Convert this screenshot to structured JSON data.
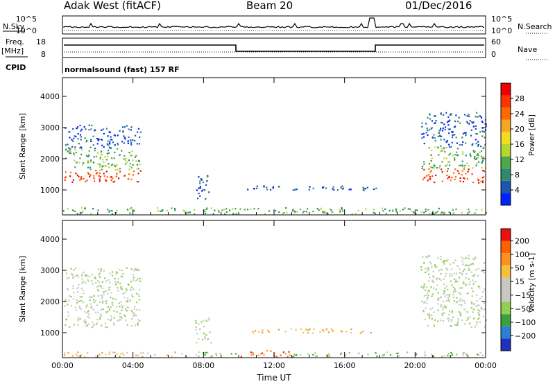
{
  "header": {
    "station": "Adak West (fitACF)",
    "beam": "Beam 20",
    "date": "01/Dec/2016"
  },
  "panels": {
    "nsky_label": "N.Sky",
    "nsky_ticks": [
      "10^5",
      "10^0"
    ],
    "nsearch_label": "N.Search",
    "nsearch_ticks": [
      "10^5",
      "10^0"
    ],
    "freq_label": "Freq.",
    "freq_unit": "[MHz]",
    "freq_ticks": [
      "18",
      "8"
    ],
    "nave_label": "Nave",
    "nave_ticks": [
      "60",
      "0"
    ],
    "cpid_label": "CPID",
    "cpid_text": "normalsound (fast) 157 RF"
  },
  "chart_data": [
    {
      "type": "heatmap",
      "name": "power",
      "ylabel": "Slant Range [km]",
      "xlabel": "",
      "colorbar_label": "Power [dB]",
      "x_ticks": [
        "00:00",
        "04:00",
        "08:00",
        "12:00",
        "16:00",
        "20:00",
        "00:00"
      ],
      "y_ticks": [
        "1000",
        "2000",
        "3000",
        "4000"
      ],
      "ylim": [
        200,
        4600
      ],
      "xlim_hours": [
        0,
        24
      ],
      "colorbar_ticks": [
        "4",
        "8",
        "12",
        "16",
        "20",
        "24",
        "28"
      ],
      "colorbar_colors": [
        "#0022ff",
        "#1e55b0",
        "#2d8a6a",
        "#4ea84a",
        "#b6d630",
        "#f0dc20",
        "#f5a623",
        "#ff6a00",
        "#ff3300",
        "#ee0000"
      ],
      "regions": [
        {
          "t": [
            0.1,
            4.4
          ],
          "r": [
            1250,
            1650
          ],
          "level": 8
        },
        {
          "t": [
            0.1,
            4.4
          ],
          "r": [
            1650,
            2350
          ],
          "level": 3
        },
        {
          "t": [
            0.1,
            4.4
          ],
          "r": [
            2350,
            3100
          ],
          "level": 1
        },
        {
          "t": [
            7.5,
            8.4
          ],
          "r": [
            700,
            1500
          ],
          "level": 1
        },
        {
          "t": [
            10.0,
            17.8
          ],
          "r": [
            1000,
            1150
          ],
          "level": 1
        },
        {
          "t": [
            0.0,
            24.0
          ],
          "r": [
            250,
            450
          ],
          "level": 3
        },
        {
          "t": [
            20.3,
            24.0
          ],
          "r": [
            1250,
            1700
          ],
          "level": 8
        },
        {
          "t": [
            20.3,
            24.0
          ],
          "r": [
            1700,
            2400
          ],
          "level": 3
        },
        {
          "t": [
            20.3,
            24.0
          ],
          "r": [
            2400,
            3500
          ],
          "level": 1
        }
      ]
    },
    {
      "type": "heatmap",
      "name": "velocity",
      "ylabel": "Slant Range [km]",
      "xlabel": "Time UT",
      "colorbar_label": "Velocity [m s-1]",
      "x_ticks": [
        "00:00",
        "04:00",
        "08:00",
        "12:00",
        "16:00",
        "20:00",
        "00:00"
      ],
      "y_ticks": [
        "1000",
        "2000",
        "3000",
        "4000"
      ],
      "ylim": [
        200,
        4600
      ],
      "xlim_hours": [
        0,
        24
      ],
      "colorbar_ticks": [
        "200",
        "100",
        "50",
        "15",
        "−15",
        "−50",
        "−100",
        "−200"
      ],
      "colorbar_colors": [
        "#2030c0",
        "#2d7fd0",
        "#3aa040",
        "#90d050",
        "#c8c8c0",
        "#c8c8c0",
        "#f5c040",
        "#ff9020",
        "#ff6000",
        "#ee1010"
      ],
      "regions": [
        {
          "t": [
            0.1,
            4.4
          ],
          "r": [
            1200,
            2300
          ],
          "level": 4
        },
        {
          "t": [
            0.1,
            4.4
          ],
          "r": [
            2300,
            3100
          ],
          "level": 4
        },
        {
          "t": [
            7.5,
            8.4
          ],
          "r": [
            700,
            1500
          ],
          "level": 4
        },
        {
          "t": [
            10.0,
            17.8
          ],
          "r": [
            1000,
            1150
          ],
          "level": 6
        },
        {
          "t": [
            0.0,
            7.0
          ],
          "r": [
            250,
            400
          ],
          "level": 6
        },
        {
          "t": [
            7.0,
            10.0
          ],
          "r": [
            250,
            400
          ],
          "level": 3
        },
        {
          "t": [
            10.0,
            13.0
          ],
          "r": [
            250,
            450
          ],
          "level": 8
        },
        {
          "t": [
            13.0,
            24.0
          ],
          "r": [
            250,
            400
          ],
          "level": 3
        },
        {
          "t": [
            20.3,
            24.0
          ],
          "r": [
            1200,
            2400
          ],
          "level": 4
        },
        {
          "t": [
            20.3,
            24.0
          ],
          "r": [
            2400,
            3500
          ],
          "level": 4
        }
      ]
    }
  ]
}
